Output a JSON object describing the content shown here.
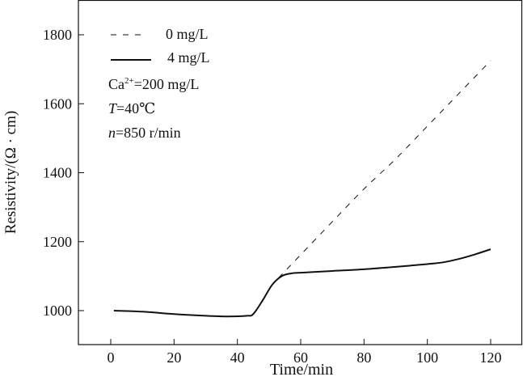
{
  "chart_data": {
    "type": "line",
    "title": "",
    "xlabel": "Time/min",
    "ylabel": "Resistivity/(Ω · cm)",
    "xlim": [
      -10,
      130
    ],
    "ylim": [
      915,
      1900
    ],
    "xticks": [
      0,
      20,
      40,
      60,
      80,
      100,
      120
    ],
    "yticks": [
      1000,
      1200,
      1400,
      1600,
      1800
    ],
    "grid": false,
    "legend_position": "top-left",
    "series": [
      {
        "name": "0 mg/L",
        "style": "dashed",
        "color": "#111111",
        "x": [
          53,
          60,
          70,
          80,
          90,
          100,
          110,
          120
        ],
        "y": [
          1095,
          1162,
          1258,
          1353,
          1440,
          1535,
          1630,
          1725
        ]
      },
      {
        "name": "4 mg/L",
        "style": "solid",
        "color": "#111111",
        "x": [
          1,
          10,
          20,
          30,
          37,
          43,
          45,
          48,
          51,
          54,
          57,
          60,
          70,
          80,
          90,
          100,
          105,
          110,
          115,
          120
        ],
        "y": [
          1000,
          997,
          990,
          985,
          983,
          985,
          990,
          1030,
          1075,
          1100,
          1108,
          1110,
          1115,
          1120,
          1127,
          1135,
          1140,
          1150,
          1163,
          1178
        ]
      }
    ],
    "annotations": {
      "ca_prefix": "Ca",
      "ca_sup": "2+",
      "ca_suffix": "=200 mg/L",
      "t_var": "T",
      "t_value": "=40℃",
      "n_var": "n",
      "n_value": "=850 r/min"
    }
  }
}
